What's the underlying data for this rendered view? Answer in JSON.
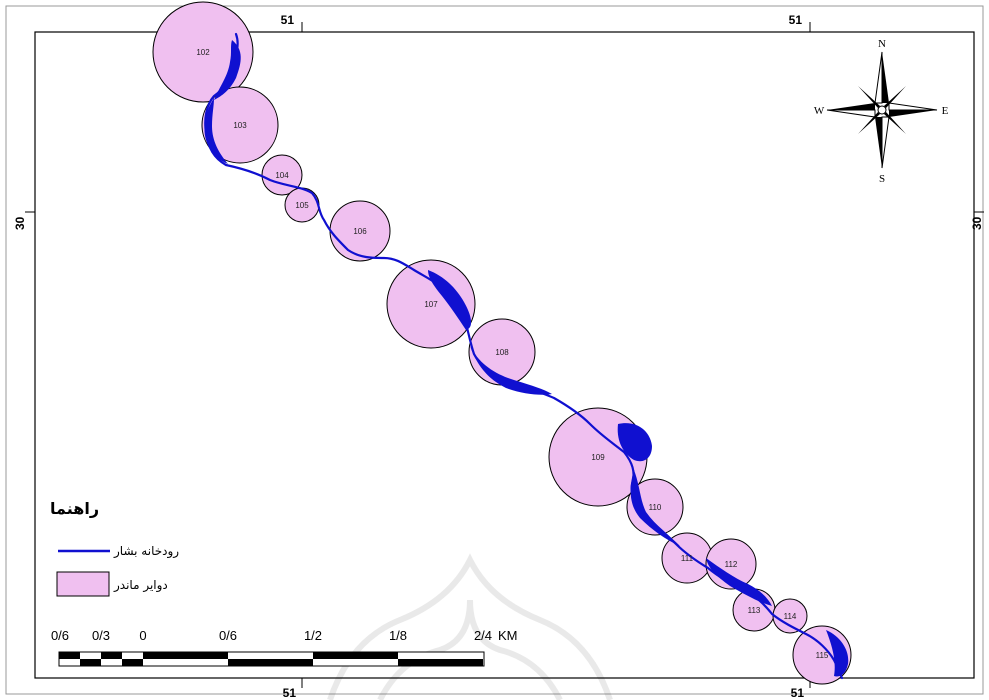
{
  "graticule": {
    "top_labels": [
      "51",
      "51"
    ],
    "bottom_labels": [
      "51",
      "51"
    ],
    "left_label": "30",
    "right_label": "30"
  },
  "compass": {
    "north": "N",
    "south": "S",
    "east": "E",
    "west": "W"
  },
  "legend": {
    "title": "راهنما",
    "items": [
      {
        "label": "رودخانه بشار",
        "symbol": "line",
        "color": "#1010d0"
      },
      {
        "label": "دوایر ماندر",
        "symbol": "box",
        "color": "#f0c0f0"
      }
    ]
  },
  "scale_bar": {
    "labels": [
      "0/6",
      "0/3",
      "0",
      "0/6",
      "1/2",
      "1/8",
      "2/4"
    ],
    "unit": "KM"
  },
  "meander_circles": [
    {
      "id": "102"
    },
    {
      "id": "103"
    },
    {
      "id": "104"
    },
    {
      "id": "105"
    },
    {
      "id": "106"
    },
    {
      "id": "107"
    },
    {
      "id": "108"
    },
    {
      "id": "109"
    },
    {
      "id": "110"
    },
    {
      "id": "111"
    },
    {
      "id": "112"
    },
    {
      "id": "113"
    },
    {
      "id": "114"
    },
    {
      "id": "115"
    }
  ],
  "colors": {
    "river": "#1010d0",
    "circle_fill": "#f0c0f0",
    "circle_stroke": "#000000",
    "frame": "#000000",
    "background": "#ffffff"
  }
}
